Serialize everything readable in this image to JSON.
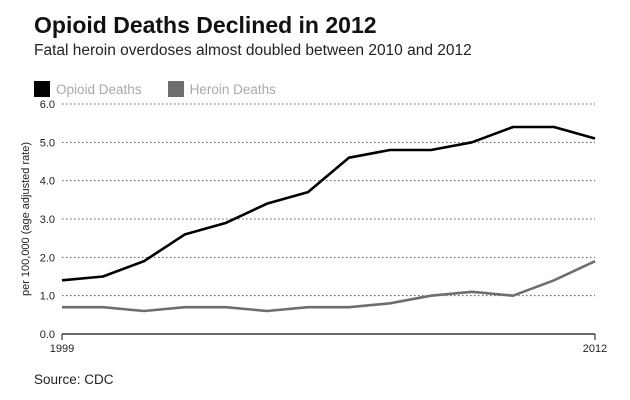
{
  "title": "Opioid Deaths Declined in 2012",
  "subtitle": "Fatal heroin overdoses almost doubled between 2010 and 2012",
  "source": "Source: CDC",
  "colors": {
    "opioid": "#000000",
    "heroin": "#6e6e6e",
    "legend_text": "#a9a9a9",
    "grid": "#555555"
  },
  "chart_data": {
    "type": "line",
    "x": [
      1999,
      2000,
      2001,
      2002,
      2003,
      2004,
      2005,
      2006,
      2007,
      2008,
      2009,
      2010,
      2011,
      2012
    ],
    "series": [
      {
        "name": "Opioid Deaths",
        "values": [
          1.4,
          1.5,
          1.9,
          2.6,
          2.9,
          3.4,
          3.7,
          4.6,
          4.8,
          4.8,
          5.0,
          5.4,
          5.4,
          5.1
        ]
      },
      {
        "name": "Heroin Deaths",
        "values": [
          0.7,
          0.7,
          0.6,
          0.7,
          0.7,
          0.6,
          0.7,
          0.7,
          0.8,
          1.0,
          1.1,
          1.0,
          1.4,
          1.9
        ]
      }
    ],
    "ylabel": "per 100,000 (age adjusted rate)",
    "xlabel": "",
    "ylim": [
      0,
      6
    ],
    "yticks": [
      "0.0",
      "1.0",
      "2.0",
      "3.0",
      "4.0",
      "5.0",
      "6.0"
    ],
    "xtick_labels": [
      "1999",
      "2012"
    ],
    "grid": "horizontal-dotted",
    "legend_position": "top-left"
  }
}
